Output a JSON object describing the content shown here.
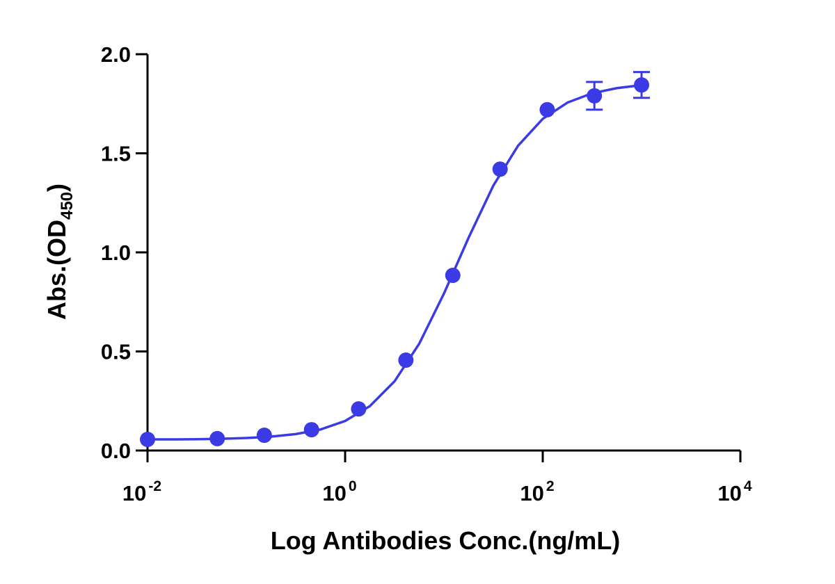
{
  "chart_data": {
    "type": "scatter",
    "xlabel": "Log Antibodies Conc.(ng/mL)",
    "ylabel": {
      "text": "Abs.(OD",
      "sub": "450",
      "end": ")"
    },
    "xscale": "log",
    "xlim": [
      0.01,
      10000
    ],
    "ylim": [
      0,
      2
    ],
    "xticks": [
      {
        "value": 0.01,
        "label": "10",
        "sup": "-2"
      },
      {
        "value": 1,
        "label": "10",
        "sup": "0"
      },
      {
        "value": 100,
        "label": "10",
        "sup": "2"
      },
      {
        "value": 10000,
        "label": "10",
        "sup": "4"
      }
    ],
    "yticks": [
      {
        "value": 0,
        "label": "0.0"
      },
      0.5,
      {
        "value": 1,
        "label": "1.0"
      },
      1.5,
      {
        "value": 2,
        "label": "2.0"
      }
    ],
    "color": "#3b3be6",
    "x": [
      0.01,
      0.0508,
      0.152,
      0.457,
      1.37,
      4.12,
      12.3,
      37,
      111,
      333,
      1000
    ],
    "values": [
      0.056,
      0.06,
      0.077,
      0.105,
      0.21,
      0.456,
      0.884,
      1.42,
      1.72,
      1.79,
      1.845
    ],
    "errors": [
      null,
      null,
      null,
      null,
      null,
      null,
      null,
      null,
      null,
      0.07,
      0.065
    ],
    "fit": {
      "x": [
        0.01,
        0.0178,
        0.0316,
        0.0562,
        0.1,
        0.178,
        0.316,
        0.562,
        1,
        1.78,
        3.16,
        5.62,
        10,
        17.8,
        31.6,
        56.2,
        100,
        178,
        316,
        562,
        1000
      ],
      "values": [
        0.056,
        0.056,
        0.057,
        0.059,
        0.063,
        0.07,
        0.083,
        0.106,
        0.149,
        0.224,
        0.349,
        0.539,
        0.792,
        1.075,
        1.337,
        1.538,
        1.674,
        1.756,
        1.803,
        1.829,
        1.844
      ]
    }
  }
}
